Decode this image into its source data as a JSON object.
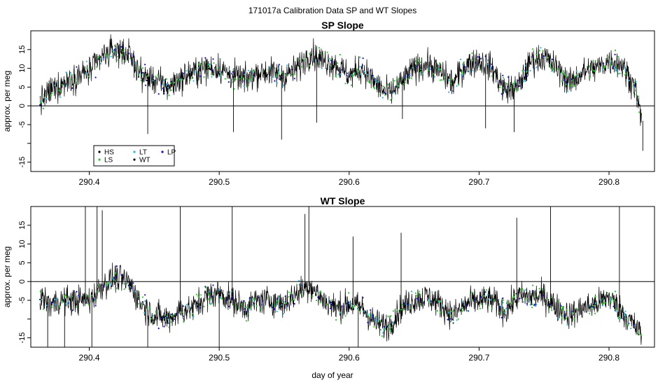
{
  "figure": {
    "title": "171017a   Calibration Data SP and WT Slopes",
    "xlabel": "day of year"
  },
  "colors": {
    "trace": "#000000",
    "HS": "#000000",
    "LS": "#22cc22",
    "LT": "#22bbdd",
    "WT": "#000000",
    "LP": "#1010cc",
    "zero_line": "#000000"
  },
  "chart_data": [
    {
      "type": "line",
      "title": "SP Slope",
      "xlabel": "",
      "ylabel": "approx. per meg",
      "xlim": [
        290.355,
        290.835
      ],
      "ylim": [
        -17.5,
        20
      ],
      "x_ticks": [
        290.4,
        290.5,
        290.6,
        290.7,
        290.8
      ],
      "x_tick_labels": [
        "290.4",
        "290.5",
        "290.6",
        "290.7",
        "290.8"
      ],
      "y_ticks": [
        -15,
        -10,
        -5,
        0,
        5,
        10,
        15
      ],
      "y_tick_labels": [
        "-15",
        "",
        "-5",
        "0",
        "5",
        "10",
        "15"
      ],
      "reference_line": 0,
      "legend": {
        "placement": "bottom-left",
        "entries": [
          {
            "label": "HS",
            "color": "#000000"
          },
          {
            "label": "LS",
            "color": "#22cc22"
          },
          {
            "label": "LT",
            "color": "#22bbdd"
          },
          {
            "label": "WT",
            "color": "#000000"
          },
          {
            "label": "LP",
            "color": "#1010cc"
          }
        ]
      },
      "series": [
        {
          "name": "HS",
          "x": [
            290.362,
            290.37,
            290.38,
            290.39,
            290.4,
            290.41,
            290.42,
            290.43,
            290.44,
            290.45,
            290.46,
            290.47,
            290.48,
            290.49,
            290.5,
            290.51,
            290.52,
            290.53,
            290.54,
            290.55,
            290.56,
            290.57,
            290.58,
            290.59,
            290.6,
            290.61,
            290.62,
            290.63,
            290.64,
            290.65,
            290.66,
            290.67,
            290.68,
            290.69,
            290.7,
            290.71,
            290.72,
            290.73,
            290.74,
            290.75,
            290.76,
            290.77,
            290.78,
            290.79,
            290.8,
            290.81,
            290.82,
            290.825
          ],
          "y": [
            1,
            4,
            6,
            8,
            9,
            13,
            15,
            14,
            8,
            7,
            5,
            7,
            9,
            10,
            10,
            8,
            7,
            9,
            9,
            8,
            10,
            14,
            12,
            11,
            8,
            10,
            6,
            3,
            6,
            10,
            11,
            9,
            6,
            11,
            12,
            10,
            4,
            5,
            12,
            13,
            10,
            6,
            9,
            10,
            12,
            11,
            5,
            -4
          ]
        }
      ],
      "spikes": [
        {
          "x": 290.445,
          "y": -7.5
        },
        {
          "x": 290.511,
          "y": -7
        },
        {
          "x": 290.548,
          "y": -9
        },
        {
          "x": 290.575,
          "y": -4.5
        },
        {
          "x": 290.641,
          "y": -3.5
        },
        {
          "x": 290.705,
          "y": -6
        },
        {
          "x": 290.727,
          "y": -7
        },
        {
          "x": 290.826,
          "y": -12
        }
      ]
    },
    {
      "type": "line",
      "title": "WT Slope",
      "xlabel": "day of year",
      "ylabel": "approx. per meg",
      "xlim": [
        290.355,
        290.835
      ],
      "ylim": [
        -17.5,
        20
      ],
      "x_ticks": [
        290.4,
        290.5,
        290.6,
        290.7,
        290.8
      ],
      "x_tick_labels": [
        "290.4",
        "290.5",
        "290.6",
        "290.7",
        "290.8"
      ],
      "y_ticks": [
        -15,
        -10,
        -5,
        0,
        5,
        10,
        15
      ],
      "y_tick_labels": [
        "-15",
        "",
        "-5",
        "0",
        "5",
        "10",
        "15"
      ],
      "reference_line": 0,
      "series": [
        {
          "name": "WT",
          "x": [
            290.362,
            290.37,
            290.38,
            290.39,
            290.4,
            290.41,
            290.42,
            290.43,
            290.44,
            290.45,
            290.46,
            290.47,
            290.48,
            290.49,
            290.5,
            290.51,
            290.52,
            290.53,
            290.54,
            290.55,
            290.56,
            290.57,
            290.58,
            290.59,
            290.6,
            290.61,
            290.62,
            290.63,
            290.64,
            290.65,
            290.66,
            290.67,
            290.68,
            290.69,
            290.7,
            290.71,
            290.72,
            290.73,
            290.74,
            290.75,
            290.76,
            290.77,
            290.78,
            290.79,
            290.8,
            290.81,
            290.82,
            290.825
          ],
          "y": [
            -4,
            -6,
            -5,
            -5,
            -5,
            -1,
            1,
            0,
            -6,
            -9,
            -10,
            -8,
            -7,
            -4,
            -3,
            -5,
            -7,
            -5,
            -5,
            -6,
            -3,
            -1,
            -5,
            -7,
            -6,
            -7,
            -11,
            -12,
            -7,
            -5,
            -4,
            -6,
            -9,
            -6,
            -5,
            -5,
            -8,
            -4,
            -4,
            -4,
            -7,
            -9,
            -7,
            -6,
            -4,
            -8,
            -12,
            -14
          ]
        }
      ],
      "spikes": [
        {
          "x": 290.368,
          "y": -17.5
        },
        {
          "x": 290.381,
          "y": -17.5
        },
        {
          "x": 290.397,
          "y": 20
        },
        {
          "x": 290.402,
          "y": -17.5
        },
        {
          "x": 290.406,
          "y": 20
        },
        {
          "x": 290.41,
          "y": 19
        },
        {
          "x": 290.445,
          "y": -17.5
        },
        {
          "x": 290.47,
          "y": 20
        },
        {
          "x": 290.5,
          "y": -17.5
        },
        {
          "x": 290.51,
          "y": 20
        },
        {
          "x": 290.566,
          "y": 18
        },
        {
          "x": 290.569,
          "y": 20
        },
        {
          "x": 290.603,
          "y": 12
        },
        {
          "x": 290.607,
          "y": -17.5
        },
        {
          "x": 290.64,
          "y": 13
        },
        {
          "x": 290.729,
          "y": 17
        },
        {
          "x": 290.755,
          "y": 20
        },
        {
          "x": 290.808,
          "y": 20
        }
      ]
    }
  ]
}
